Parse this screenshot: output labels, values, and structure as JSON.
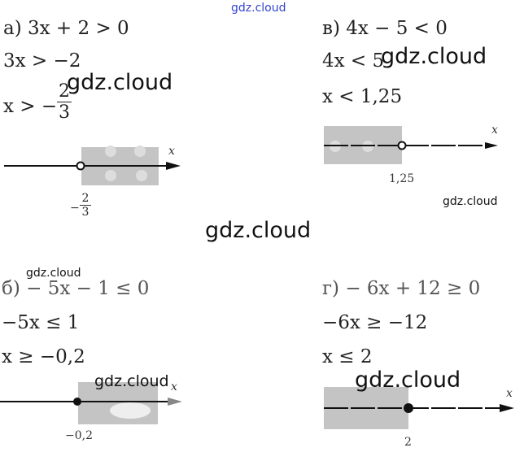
{
  "watermark": "gdz.cloud",
  "problems": {
    "a": {
      "lines": [
        "а) 3x + 2 > 0",
        "3x > −2",
        "x > −"
      ],
      "frac_num": "2",
      "frac_den": "3",
      "axis_label": "x",
      "point_num": "2",
      "point_den": "3",
      "point_sign": "−",
      "point_type": "open",
      "shade": "right"
    },
    "v": {
      "lines": [
        "в) 4x − 5 < 0",
        "4x < 5",
        "x < 1,25"
      ],
      "axis_label": "x",
      "point": "1,25",
      "point_type": "open",
      "shade": "left"
    },
    "b": {
      "lines": [
        "б) − 5x − 1 ≤ 0",
        "−5x ≤ 1",
        "x ≥ −0,2"
      ],
      "axis_label": "x",
      "point": "−0,2",
      "point_type": "filled",
      "shade": "right"
    },
    "g": {
      "lines": [
        "г) − 6x + 12 ≥ 0",
        "−6x ≥ −12",
        "x ≤ 2"
      ],
      "axis_label": "x",
      "point": "2",
      "point_type": "filled",
      "shade": "left"
    }
  }
}
